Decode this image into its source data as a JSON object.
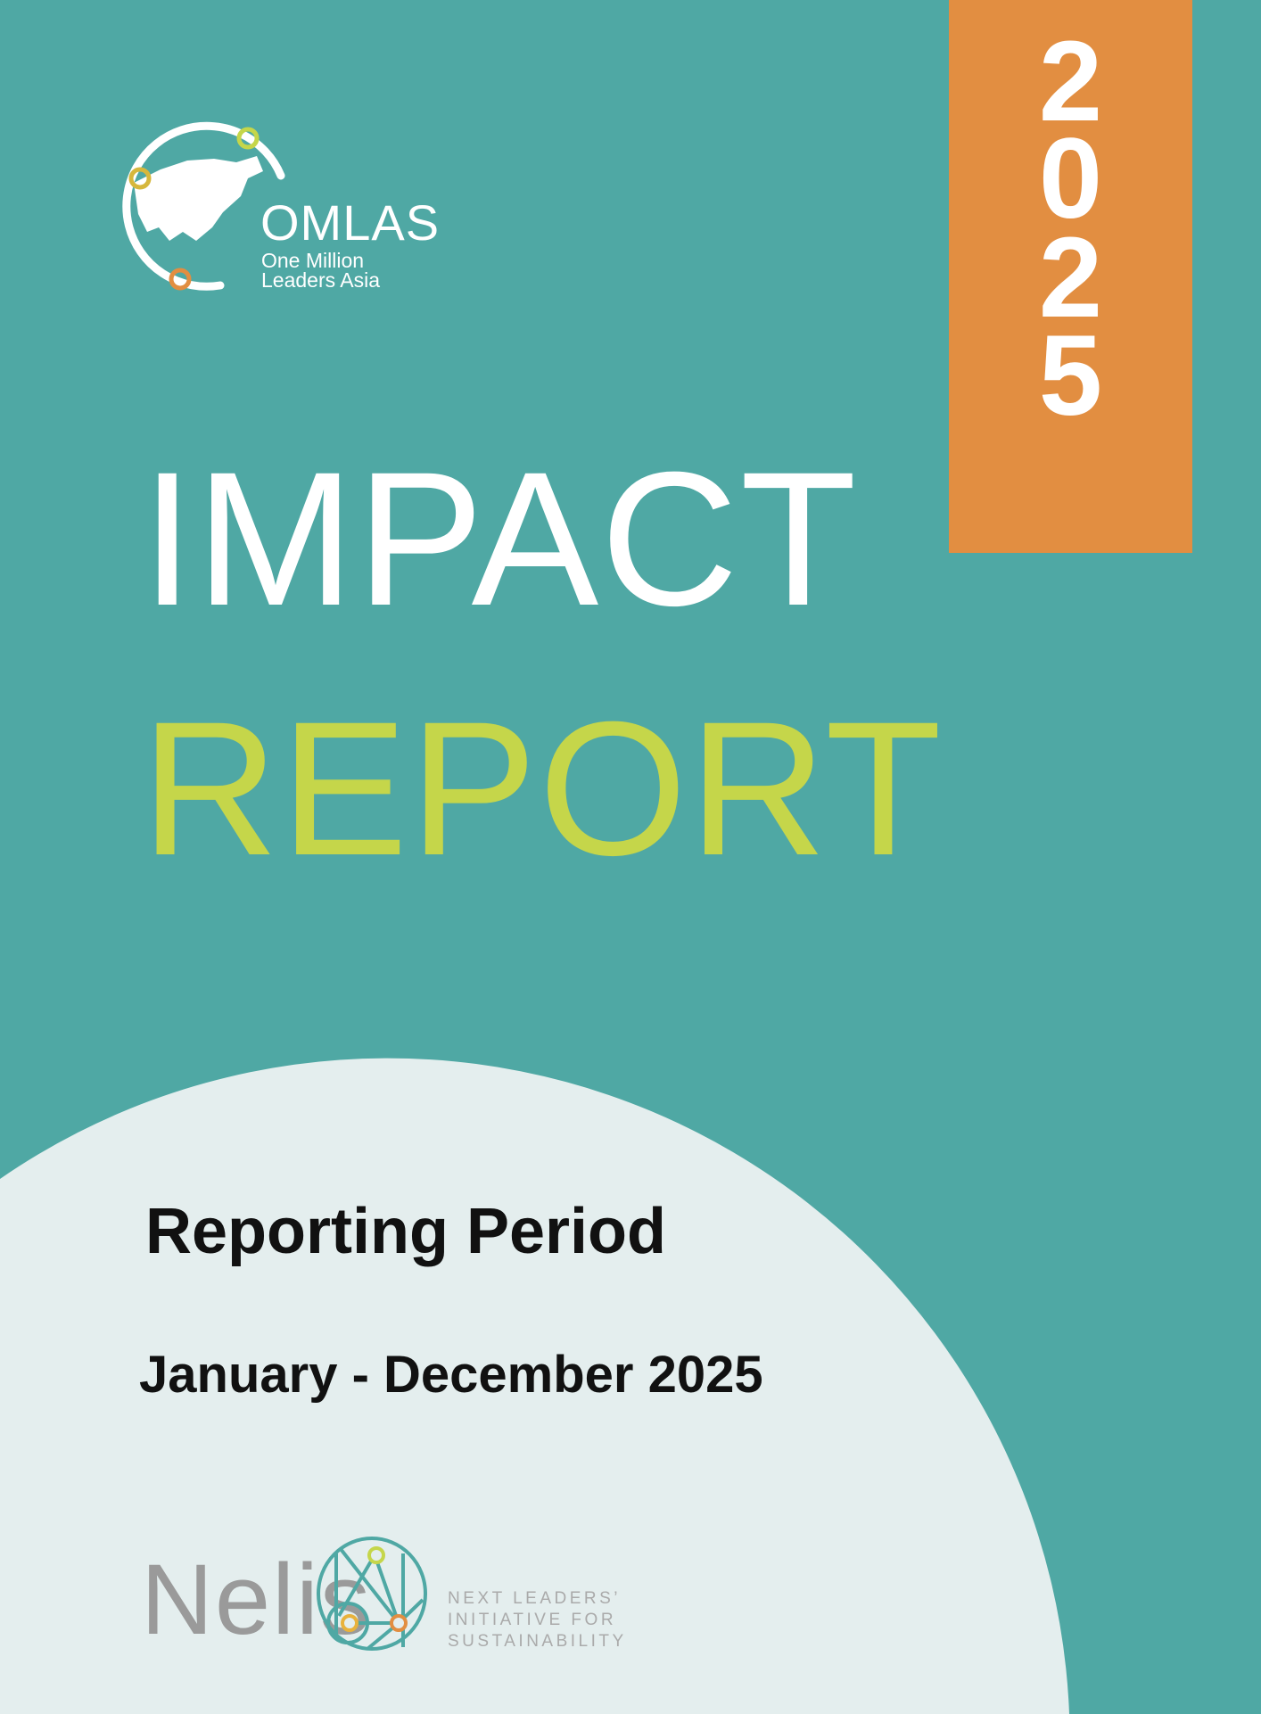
{
  "year": {
    "digits": [
      "2",
      "0",
      "2",
      "5"
    ]
  },
  "logo": {
    "name": "OMLAS",
    "line1": "One Million",
    "line2": "Leaders Asia"
  },
  "title": {
    "line1": "IMPACT",
    "line2": "REPORT"
  },
  "period": {
    "label": "Reporting Period",
    "value": "January - December 2025"
  },
  "partner": {
    "name": "Nelis",
    "tagline": [
      "NEXT LEADERS’",
      "INITIATIVE FOR",
      "SUSTAINABILITY"
    ]
  },
  "colors": {
    "background": "#4fa8a4",
    "year_box": "#e28e41",
    "report": "#c5d64a",
    "light_panel": "#e4eeee"
  }
}
